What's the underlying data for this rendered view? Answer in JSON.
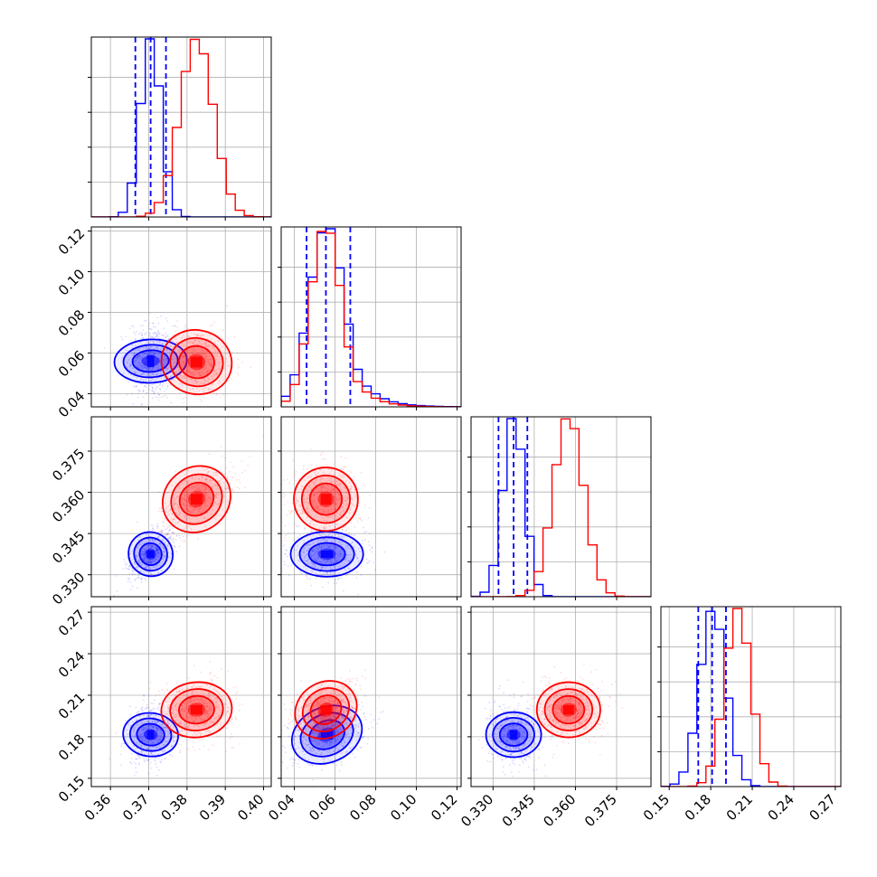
{
  "chart_data": {
    "type": "corner",
    "grid": true,
    "colors": {
      "blue": "#0000ff",
      "red": "#ff0000",
      "grid": "#b0b0b0",
      "frame": "#000000"
    },
    "parameters": [
      {
        "index": 0,
        "range": [
          0.355,
          0.402
        ],
        "ticks": [
          0.36,
          0.37,
          0.38,
          0.39,
          0.4
        ],
        "tick_labels": [
          "0.36",
          "0.37",
          "0.38",
          "0.39",
          "0.40"
        ]
      },
      {
        "index": 1,
        "range": [
          0.0335,
          0.122
        ],
        "ticks": [
          0.04,
          0.06,
          0.08,
          0.1,
          0.12
        ],
        "tick_labels": [
          "0.04",
          "0.06",
          "0.08",
          "0.10",
          "0.12"
        ]
      },
      {
        "index": 2,
        "range": [
          0.322,
          0.3875
        ],
        "ticks": [
          0.33,
          0.345,
          0.36,
          0.375
        ],
        "tick_labels": [
          "0.330",
          "0.345",
          "0.360",
          "0.375"
        ]
      },
      {
        "index": 3,
        "range": [
          0.144,
          0.274
        ],
        "ticks": [
          0.15,
          0.18,
          0.21,
          0.24,
          0.27
        ],
        "tick_labels": [
          "0.15",
          "0.18",
          "0.21",
          "0.24",
          "0.27"
        ]
      }
    ],
    "series": [
      {
        "color": "blue",
        "mean": [
          0.3705,
          0.056,
          0.3375,
          0.1815
        ],
        "std": [
          0.0027,
          0.0085,
          0.0039,
          0.0095
        ],
        "corr": {
          "0-1": -0.05,
          "0-2": 0.55,
          "0-3": 0.05,
          "1-2": 0.0,
          "1-3": 0.3,
          "2-3": 0.0
        },
        "quantile_lines": [
          [
            0.3665,
            0.3705,
            0.3745
          ],
          [
            0.046,
            0.0555,
            0.0675
          ],
          [
            0.332,
            0.3375,
            0.3425
          ],
          [
            0.171,
            0.181,
            0.191
          ]
        ]
      },
      {
        "color": "red",
        "mean": [
          0.3825,
          0.0555,
          0.3575,
          0.1995
        ],
        "std": [
          0.0044,
          0.0075,
          0.0055,
          0.0095
        ],
        "corr": {
          "0-1": -0.05,
          "0-2": 0.55,
          "0-3": 0.05,
          "1-2": 0.0,
          "1-3": 0.3,
          "2-3": 0.0
        }
      }
    ]
  }
}
